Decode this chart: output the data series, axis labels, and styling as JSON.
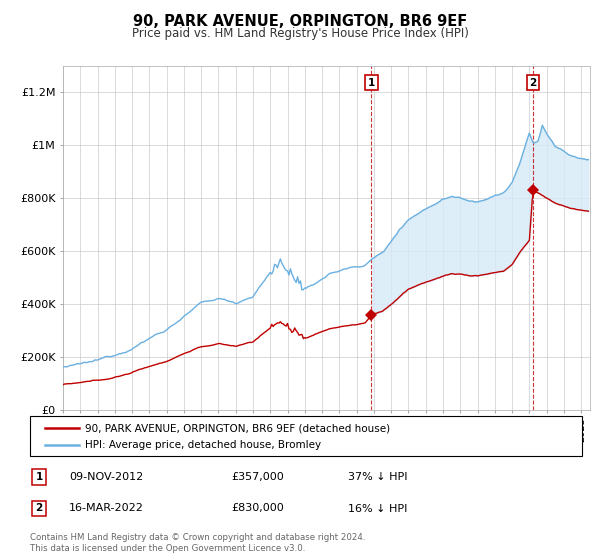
{
  "title": "90, PARK AVENUE, ORPINGTON, BR6 9EF",
  "subtitle": "Price paid vs. HM Land Registry's House Price Index (HPI)",
  "ylabel_ticks": [
    "£0",
    "£200K",
    "£400K",
    "£600K",
    "£800K",
    "£1M",
    "£1.2M"
  ],
  "ytick_vals": [
    0,
    200000,
    400000,
    600000,
    800000,
    1000000,
    1200000
  ],
  "ylim": [
    0,
    1300000
  ],
  "xlim_start": 1995.0,
  "xlim_end": 2025.5,
  "hpi_color": "#6ab0e0",
  "hpi_fill_color": "#d6eaf8",
  "price_color": "#c00000",
  "sale1_x": 2012.86,
  "sale1_y": 357000,
  "sale2_x": 2022.21,
  "sale2_y": 830000,
  "legend_entries": [
    "90, PARK AVENUE, ORPINGTON, BR6 9EF (detached house)",
    "HPI: Average price, detached house, Bromley"
  ],
  "annotation1_label": "1",
  "annotation1_date": "09-NOV-2012",
  "annotation1_price": "£357,000",
  "annotation1_hpi": "37% ↓ HPI",
  "annotation2_label": "2",
  "annotation2_date": "16-MAR-2022",
  "annotation2_price": "£830,000",
  "annotation2_hpi": "16% ↓ HPI",
  "footer": "Contains HM Land Registry data © Crown copyright and database right 2024.\nThis data is licensed under the Open Government Licence v3.0.",
  "background_color": "#ffffff",
  "plot_bg_color": "#ffffff",
  "grid_color": "#cccccc"
}
